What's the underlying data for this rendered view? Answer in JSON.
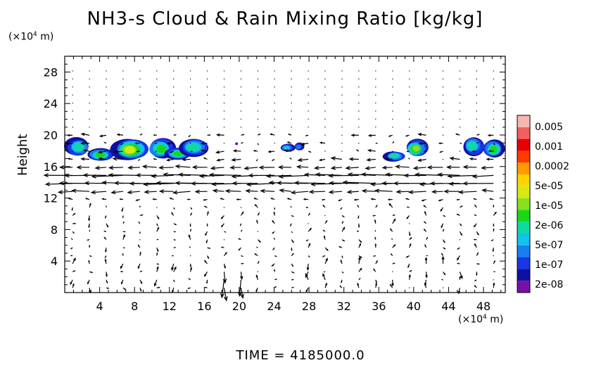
{
  "title": "NH3-s Cloud & Rain Mixing Ratio [kg/kg]",
  "footer": "TIME = 4185000.0",
  "chart_data": {
    "type": "heatmap",
    "title": "NH3-s Cloud & Rain Mixing Ratio [kg/kg]",
    "ylabel": "Height",
    "y_unit": "(x10^4 m)",
    "x_unit": "(x10^4 m)",
    "xlim": [
      0,
      50.5
    ],
    "ylim": [
      0,
      30
    ],
    "x_ticks": [
      4,
      8,
      12,
      16,
      20,
      24,
      28,
      32,
      36,
      40,
      44,
      48
    ],
    "y_ticks": [
      4,
      8,
      12,
      16,
      20,
      24,
      28
    ],
    "colorbar": {
      "labels": [
        "0.005",
        "0.001",
        "0.0002",
        "5e-05",
        "1e-05",
        "2e-06",
        "5e-07",
        "1e-07",
        "2e-08"
      ],
      "colors": [
        "#7a0fa8",
        "#1010a0",
        "#1a36e6",
        "#1a7ef0",
        "#12c2e8",
        "#10d9a0",
        "#18d818",
        "#86e020",
        "#d8e812",
        "#ffd400",
        "#ff9a00",
        "#ff3a00",
        "#e80000",
        "#f06060",
        "#f6b8b0"
      ]
    },
    "cloud_patches": [
      {
        "x": [
          0,
          16.5
        ],
        "y": [
          16.4,
          19.6
        ],
        "peak": "5e-05"
      },
      {
        "x": [
          24.5,
          27.5
        ],
        "y": [
          17.8,
          19.0
        ],
        "peak": "5e-07"
      },
      {
        "x": [
          36.5,
          41.5
        ],
        "y": [
          16.6,
          19.4
        ],
        "peak": "1e-05"
      },
      {
        "x": [
          45.5,
          50.5
        ],
        "y": [
          17.0,
          19.8
        ],
        "peak": "1e-05"
      }
    ],
    "wind_field": {
      "upper_level_y": [
        12,
        17
      ],
      "dominant_direction": "westward"
    }
  }
}
